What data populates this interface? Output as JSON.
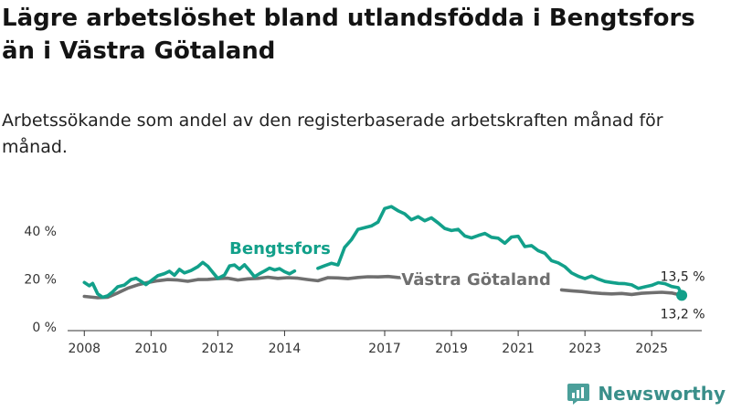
{
  "header": {
    "title": "Lägre arbetslöshet bland utlandsfödda i Bengtsfors än i Västra Götaland",
    "subtitle": "Arbetssökande som andel av den registerbaserade arbetskraften månad för månad."
  },
  "brand": {
    "name": "Newsworthy"
  },
  "colors": {
    "bengtsfors": "#12a08a",
    "vastra": "#6f6f6f",
    "axis": "#333333"
  },
  "chart_data": {
    "type": "line",
    "title": "Lägre arbetslöshet bland utlandsfödda i Bengtsfors än i Västra Götaland",
    "subtitle": "Arbetssökande som andel av den registerbaserade arbetskraften månad för månad.",
    "xlabel": "",
    "ylabel": "",
    "xlim": [
      2007.5,
      2026.5
    ],
    "ylim": [
      0,
      50
    ],
    "x_ticks": [
      2008,
      2010,
      2012,
      2014,
      2017,
      2019,
      2021,
      2023,
      2025
    ],
    "x_tick_labels": [
      "2008",
      "2010",
      "2012",
      "2014",
      "2017",
      "2019",
      "2021",
      "2023",
      "2025"
    ],
    "y_ticks": [
      0,
      20,
      40
    ],
    "y_tick_labels": [
      "0 %",
      "20 %",
      "40 %"
    ],
    "grid": false,
    "series": [
      {
        "name": "Västra Götaland",
        "label": "Västra Götaland",
        "end_label": "13,2 %",
        "segments": [
          [
            [
              2008.0,
              12.8
            ],
            [
              2008.4,
              12.2
            ],
            [
              2008.7,
              12.4
            ],
            [
              2009.0,
              14.2
            ],
            [
              2009.3,
              16.2
            ],
            [
              2009.6,
              17.6
            ],
            [
              2009.9,
              18.6
            ],
            [
              2010.2,
              19.3
            ],
            [
              2010.5,
              19.8
            ],
            [
              2010.8,
              19.6
            ],
            [
              2011.1,
              19.1
            ],
            [
              2011.4,
              19.8
            ],
            [
              2011.7,
              19.9
            ],
            [
              2012.0,
              20.2
            ],
            [
              2012.3,
              20.4
            ],
            [
              2012.6,
              19.6
            ],
            [
              2012.9,
              20.1
            ],
            [
              2013.2,
              20.3
            ],
            [
              2013.5,
              20.8
            ],
            [
              2013.8,
              20.3
            ],
            [
              2014.1,
              20.6
            ],
            [
              2014.4,
              20.4
            ],
            [
              2014.7,
              19.8
            ],
            [
              2015.0,
              19.3
            ],
            [
              2015.3,
              20.6
            ],
            [
              2015.6,
              20.5
            ],
            [
              2015.9,
              20.2
            ],
            [
              2016.2,
              20.7
            ],
            [
              2016.5,
              21.0
            ],
            [
              2016.8,
              20.9
            ],
            [
              2017.1,
              21.1
            ],
            [
              2017.4,
              20.7
            ],
            [
              2017.6,
              20.6
            ]
          ],
          [
            [
              2022.3,
              15.5
            ],
            [
              2022.6,
              15.1
            ],
            [
              2022.9,
              14.8
            ],
            [
              2023.2,
              14.3
            ],
            [
              2023.5,
              14.0
            ],
            [
              2023.8,
              13.8
            ],
            [
              2024.1,
              14.0
            ],
            [
              2024.4,
              13.6
            ],
            [
              2024.7,
              14.1
            ],
            [
              2025.0,
              14.3
            ],
            [
              2025.3,
              14.5
            ],
            [
              2025.6,
              14.2
            ],
            [
              2025.9,
              13.2
            ]
          ]
        ]
      },
      {
        "name": "Bengtsfors",
        "label": "Bengtsfors",
        "end_label": "13,5 %",
        "segments": [
          [
            [
              2008.0,
              18.6
            ],
            [
              2008.15,
              17.2
            ],
            [
              2008.25,
              18.2
            ],
            [
              2008.4,
              13.8
            ],
            [
              2008.55,
              12.4
            ],
            [
              2008.7,
              13.0
            ],
            [
              2008.85,
              14.7
            ],
            [
              2009.0,
              16.8
            ],
            [
              2009.2,
              17.5
            ],
            [
              2009.4,
              19.8
            ],
            [
              2009.55,
              20.4
            ],
            [
              2009.7,
              19.1
            ],
            [
              2009.85,
              17.7
            ],
            [
              2010.0,
              19.3
            ],
            [
              2010.2,
              21.4
            ],
            [
              2010.4,
              22.3
            ],
            [
              2010.55,
              23.3
            ],
            [
              2010.7,
              21.6
            ],
            [
              2010.85,
              24.1
            ],
            [
              2011.0,
              22.6
            ],
            [
              2011.2,
              23.6
            ],
            [
              2011.4,
              25.2
            ],
            [
              2011.55,
              27.0
            ],
            [
              2011.7,
              25.4
            ],
            [
              2011.85,
              22.8
            ],
            [
              2012.0,
              20.3
            ],
            [
              2012.2,
              21.7
            ],
            [
              2012.35,
              25.5
            ],
            [
              2012.5,
              25.9
            ],
            [
              2012.65,
              24.2
            ],
            [
              2012.8,
              26.0
            ],
            [
              2012.95,
              23.6
            ],
            [
              2013.1,
              21.0
            ],
            [
              2013.25,
              22.3
            ],
            [
              2013.4,
              23.4
            ],
            [
              2013.55,
              24.6
            ],
            [
              2013.7,
              23.8
            ],
            [
              2013.85,
              24.4
            ],
            [
              2014.0,
              23.1
            ],
            [
              2014.15,
              22.2
            ],
            [
              2014.3,
              23.4
            ]
          ],
          [
            [
              2015.0,
              24.5
            ],
            [
              2015.2,
              25.6
            ],
            [
              2015.4,
              26.6
            ],
            [
              2015.6,
              25.9
            ],
            [
              2015.8,
              33.3
            ],
            [
              2016.0,
              36.4
            ],
            [
              2016.2,
              40.8
            ],
            [
              2016.4,
              41.5
            ],
            [
              2016.6,
              42.2
            ],
            [
              2016.8,
              43.8
            ],
            [
              2017.0,
              49.5
            ],
            [
              2017.2,
              50.3
            ],
            [
              2017.4,
              48.6
            ],
            [
              2017.6,
              47.3
            ],
            [
              2017.8,
              44.8
            ],
            [
              2018.0,
              46.1
            ],
            [
              2018.2,
              44.4
            ],
            [
              2018.4,
              45.6
            ],
            [
              2018.6,
              43.5
            ],
            [
              2018.8,
              41.2
            ],
            [
              2019.0,
              40.3
            ],
            [
              2019.2,
              40.8
            ],
            [
              2019.4,
              38.0
            ],
            [
              2019.6,
              37.2
            ],
            [
              2019.8,
              38.2
            ],
            [
              2020.0,
              39.1
            ],
            [
              2020.2,
              37.5
            ],
            [
              2020.4,
              37.1
            ],
            [
              2020.6,
              35.0
            ],
            [
              2020.8,
              37.6
            ],
            [
              2021.0,
              37.9
            ],
            [
              2021.2,
              33.6
            ],
            [
              2021.4,
              34.0
            ],
            [
              2021.6,
              31.9
            ],
            [
              2021.8,
              30.8
            ],
            [
              2022.0,
              27.7
            ],
            [
              2022.2,
              26.8
            ],
            [
              2022.4,
              25.2
            ],
            [
              2022.6,
              22.6
            ],
            [
              2022.8,
              21.2
            ],
            [
              2023.0,
              20.2
            ],
            [
              2023.2,
              21.3
            ],
            [
              2023.4,
              20.0
            ],
            [
              2023.6,
              19.0
            ],
            [
              2023.8,
              18.6
            ],
            [
              2024.0,
              18.2
            ],
            [
              2024.2,
              18.1
            ],
            [
              2024.4,
              17.6
            ],
            [
              2024.6,
              16.1
            ],
            [
              2024.8,
              16.8
            ],
            [
              2025.0,
              17.4
            ],
            [
              2025.2,
              18.5
            ],
            [
              2025.4,
              18.1
            ],
            [
              2025.6,
              16.9
            ],
            [
              2025.8,
              16.4
            ],
            [
              2025.9,
              13.5
            ]
          ]
        ]
      }
    ]
  }
}
